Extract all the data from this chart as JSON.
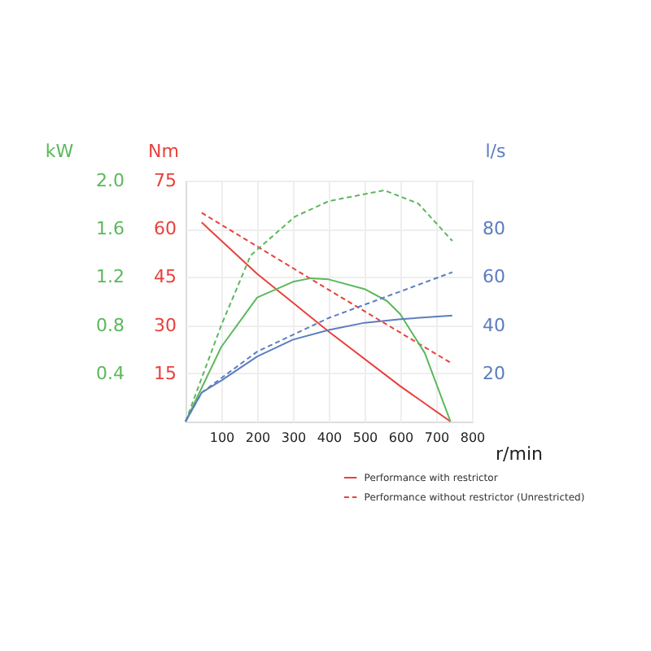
{
  "chart_data": {
    "type": "line",
    "xlabel": "r/min",
    "ylabel": "Nm",
    "y2label": "l/s",
    "y3label": "kW",
    "xlim": [
      0,
      800
    ],
    "xticks": [
      100,
      200,
      300,
      400,
      500,
      600,
      700,
      800
    ],
    "ylim": [
      0,
      75
    ],
    "yticks": [
      15,
      30,
      45,
      60,
      75
    ],
    "y2lim": [
      0,
      100
    ],
    "y2ticks": [
      20,
      40,
      60,
      80
    ],
    "y3lim": [
      0,
      2
    ],
    "y3ticks": [
      0.4,
      0.8,
      1.2,
      1.6,
      {
        "value": 2,
        "label": "2.0"
      }
    ],
    "grid": true,
    "legend": "bottom right",
    "series": [
      {
        "name": "Performance with restrictor",
        "color": "#e8413c",
        "axis": "y",
        "line_style": "solid",
        "x": [
          45,
          200,
          400,
          600,
          740
        ],
        "values": [
          62,
          46,
          28,
          11,
          0
        ]
      },
      {
        "name": "Performance without restrictor (Unrestricted)",
        "color": "#e8413c",
        "axis": "y",
        "line_style": "dashed",
        "x": [
          45,
          400,
          745
        ],
        "values": [
          65,
          41,
          18
        ]
      },
      {
        "color": "#5cb85c",
        "axis": "y3",
        "line_style": "solid",
        "x": [
          0,
          100,
          200,
          300,
          350,
          400,
          500,
          563,
          600,
          668,
          740
        ],
        "values": [
          0,
          0.62,
          1.03,
          1.16,
          1.19,
          1.18,
          1.1,
          1.0,
          0.89,
          0.57,
          0
        ]
      },
      {
        "color": "#5cb85c",
        "axis": "y3",
        "line_style": "dashed",
        "x": [
          0,
          100,
          182,
          305,
          400,
          555,
          650,
          745
        ],
        "values": [
          0,
          0.8,
          1.38,
          1.7,
          1.83,
          1.92,
          1.81,
          1.5
        ]
      },
      {
        "color": "#5b7dbf",
        "axis": "y2",
        "line_style": "solid",
        "x": [
          0,
          45,
          100,
          200,
          300,
          400,
          500,
          600,
          745
        ],
        "values": [
          0,
          12,
          17,
          27,
          34,
          38,
          41,
          42.5,
          44
        ]
      },
      {
        "color": "#5b7dbf",
        "axis": "y2",
        "line_style": "dashed",
        "x": [
          0,
          45,
          200,
          400,
          600,
          745
        ],
        "values": [
          0,
          12,
          29,
          43,
          54,
          62
        ]
      }
    ]
  }
}
